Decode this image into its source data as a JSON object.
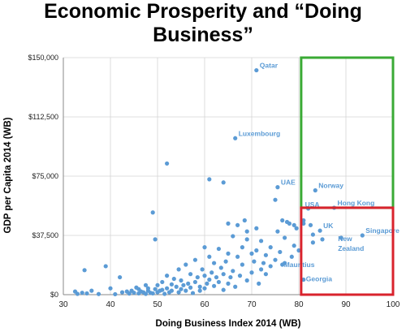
{
  "chart_data": {
    "type": "scatter",
    "title_lines": [
      "Economic Prosperity and “Doing",
      "Business”"
    ],
    "xlabel": "Doing Business Index 2014 (WB)",
    "ylabel": "GDP per Capita 2014 (WB)",
    "xlim": [
      30,
      100
    ],
    "ylim": [
      0,
      150000
    ],
    "x_ticks": [
      {
        "value": 30,
        "label": "30"
      },
      {
        "value": 40,
        "label": "40"
      },
      {
        "value": 50,
        "label": "50"
      },
      {
        "value": 60,
        "label": "60"
      },
      {
        "value": 70,
        "label": "70"
      },
      {
        "value": 80,
        "label": "80"
      },
      {
        "value": 90,
        "label": "90"
      },
      {
        "value": 100,
        "label": "100"
      }
    ],
    "y_ticks": [
      {
        "value": 0,
        "label": "$0"
      },
      {
        "value": 37500,
        "label": "$37,500"
      },
      {
        "value": 75000,
        "label": "$75,000"
      },
      {
        "value": 112500,
        "label": "$112,500"
      },
      {
        "value": 150000,
        "label": "$150,000"
      }
    ],
    "grid": true,
    "point_color": "#5b9bd5",
    "label_color": "#5b9bd5",
    "highlight_boxes": [
      {
        "x_range": [
          80.5,
          100
        ],
        "y_range": [
          55000,
          150000
        ],
        "color": "#3aaa35"
      },
      {
        "x_range": [
          80.5,
          100
        ],
        "y_range": [
          0,
          55000
        ],
        "color": "#d9232d"
      }
    ],
    "labeled_points": [
      {
        "label": "Qatar",
        "x": 71,
        "y": 142000
      },
      {
        "label": "Luxembourg",
        "x": 66.5,
        "y": 99000
      },
      {
        "label": "UAE",
        "x": 75.5,
        "y": 68000
      },
      {
        "label": "Norway",
        "x": 83.5,
        "y": 66000
      },
      {
        "label": "USA",
        "x": 82,
        "y": 54500
      },
      {
        "label": "Hong Kong",
        "x": 87.5,
        "y": 55000
      },
      {
        "label": "UK",
        "x": 84.5,
        "y": 40500
      },
      {
        "label": "Singapore",
        "x": 93.5,
        "y": 37500
      },
      {
        "label": "New Zealand",
        "x": 89,
        "y": 36000
      },
      {
        "label": "Mauritius",
        "x": 76.5,
        "y": 19000
      },
      {
        "label": "Georgia",
        "x": 81,
        "y": 9500
      }
    ],
    "points": [
      [
        32.5,
        2000
      ],
      [
        33,
        500
      ],
      [
        34,
        1200
      ],
      [
        35,
        800
      ],
      [
        34.5,
        15500
      ],
      [
        36,
        2500
      ],
      [
        37.5,
        400
      ],
      [
        39,
        18000
      ],
      [
        40,
        4000
      ],
      [
        41,
        300
      ],
      [
        42,
        11000
      ],
      [
        42.5,
        1500
      ],
      [
        43.5,
        2000
      ],
      [
        44,
        700
      ],
      [
        44.5,
        2500
      ],
      [
        45,
        1200
      ],
      [
        45.5,
        4500
      ],
      [
        46,
        800
      ],
      [
        46,
        3500
      ],
      [
        46.5,
        2000
      ],
      [
        47,
        1500
      ],
      [
        47.5,
        6000
      ],
      [
        47.5,
        500
      ],
      [
        48,
        2500
      ],
      [
        48,
        4000
      ],
      [
        48.5,
        1200
      ],
      [
        49,
        800
      ],
      [
        49,
        52000
      ],
      [
        49.5,
        35000
      ],
      [
        49.5,
        3500
      ],
      [
        50,
        6000
      ],
      [
        50,
        1500
      ],
      [
        50.5,
        2500
      ],
      [
        51,
        8000
      ],
      [
        51,
        3000
      ],
      [
        51.5,
        500
      ],
      [
        52,
        12000
      ],
      [
        52,
        4000
      ],
      [
        52.5,
        1500
      ],
      [
        53,
        6500
      ],
      [
        53,
        2500
      ],
      [
        53.5,
        10000
      ],
      [
        54,
        5000
      ],
      [
        54.5,
        16000
      ],
      [
        54.5,
        1500
      ],
      [
        55,
        3500
      ],
      [
        55,
        9000
      ],
      [
        55.5,
        6000
      ],
      [
        56,
        2500
      ],
      [
        56,
        19000
      ],
      [
        56.5,
        7000
      ],
      [
        57,
        4500
      ],
      [
        57,
        13000
      ],
      [
        57.5,
        1000
      ],
      [
        58,
        8000
      ],
      [
        58,
        22000
      ],
      [
        58.5,
        11000
      ],
      [
        59,
        5000
      ],
      [
        59,
        2500
      ],
      [
        59.5,
        16000
      ],
      [
        60,
        12000
      ],
      [
        60,
        4000
      ],
      [
        60,
        30000
      ],
      [
        60.5,
        7000
      ],
      [
        61,
        24000
      ],
      [
        61,
        9500
      ],
      [
        61,
        73000
      ],
      [
        61.5,
        14000
      ],
      [
        62,
        5500
      ],
      [
        62,
        20000
      ],
      [
        62.5,
        11000
      ],
      [
        63,
        29000
      ],
      [
        63,
        8000
      ],
      [
        63.5,
        17000
      ],
      [
        64,
        13000
      ],
      [
        64,
        3000
      ],
      [
        64,
        71000
      ],
      [
        64.5,
        21000
      ],
      [
        65,
        7000
      ],
      [
        65,
        26000
      ],
      [
        65,
        45000
      ],
      [
        65.5,
        11000
      ],
      [
        66,
        15000
      ],
      [
        66,
        37000
      ],
      [
        66.5,
        5000
      ],
      [
        67,
        24000
      ],
      [
        67,
        44000
      ],
      [
        67.5,
        12000
      ],
      [
        68,
        30000
      ],
      [
        68,
        19000
      ],
      [
        68.5,
        47000
      ],
      [
        69,
        9000
      ],
      [
        69,
        35000
      ],
      [
        69,
        40000
      ],
      [
        70,
        14000
      ],
      [
        70,
        26000
      ],
      [
        70.5,
        21000
      ],
      [
        71,
        42000
      ],
      [
        71,
        28000
      ],
      [
        71.5,
        7000
      ],
      [
        72,
        16000
      ],
      [
        72,
        34000
      ],
      [
        72.5,
        20000
      ],
      [
        73,
        25000
      ],
      [
        73,
        13000
      ],
      [
        74,
        18000
      ],
      [
        74,
        30000
      ],
      [
        75,
        60000
      ],
      [
        75,
        22000
      ],
      [
        75.5,
        40000
      ],
      [
        76,
        27000
      ],
      [
        76.5,
        47000
      ],
      [
        77,
        20000
      ],
      [
        77,
        36000
      ],
      [
        77.5,
        46000
      ],
      [
        78,
        45000
      ],
      [
        78.5,
        24000
      ],
      [
        79,
        44000
      ],
      [
        79,
        31000
      ],
      [
        79.5,
        42000
      ],
      [
        80,
        28000
      ],
      [
        81,
        47000
      ],
      [
        81,
        45000
      ],
      [
        82.5,
        44000
      ],
      [
        83,
        33000
      ],
      [
        83,
        38000
      ],
      [
        85,
        35000
      ],
      [
        52,
        83000
      ]
    ]
  }
}
